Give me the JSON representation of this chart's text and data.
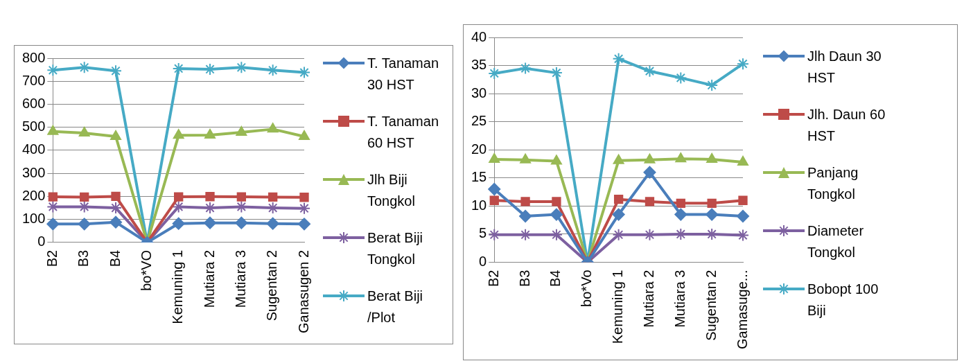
{
  "chart_data": [
    {
      "type": "line",
      "categories": [
        "B2",
        "B3",
        "B4",
        "bo*VO",
        "Kemuning 1",
        "Mutiara 2",
        "Mutiara 3",
        "Sugentan 2",
        "Ganasugen 2"
      ],
      "series": [
        {
          "name": "T. Tanaman 30 HST",
          "color": "#4a7ebb",
          "marker": "diamond",
          "values": [
            80,
            80,
            88,
            0,
            82,
            85,
            85,
            82,
            80
          ]
        },
        {
          "name": "T. Tanaman 60 HST",
          "color": "#be4b48",
          "marker": "square",
          "values": [
            198,
            197,
            200,
            0,
            198,
            199,
            198,
            197,
            196
          ]
        },
        {
          "name": "Jlh Biji Tongkol",
          "color": "#98b954",
          "marker": "triangle",
          "values": [
            482,
            475,
            460,
            0,
            465,
            466,
            478,
            492,
            460
          ]
        },
        {
          "name": "Berat Biji Tongkol",
          "color": "#7d60a0",
          "marker": "cross",
          "values": [
            155,
            155,
            150,
            0,
            155,
            150,
            155,
            150,
            148
          ]
        },
        {
          "name": "Berat Biji /Plot",
          "color": "#46aac5",
          "marker": "cross",
          "values": [
            748,
            760,
            745,
            0,
            755,
            752,
            760,
            748,
            738
          ]
        }
      ],
      "ylim": [
        0,
        800
      ],
      "yticks": [
        0,
        100,
        200,
        300,
        400,
        500,
        600,
        700,
        800
      ],
      "grid": "y",
      "legend": "right"
    },
    {
      "type": "line",
      "categories": [
        "B2",
        "B3",
        "B4",
        "bo*Vo",
        "Kemuning 1",
        "Mutiara 2",
        "Mutiara 3",
        "Sugentan 2",
        "Gamasuge..."
      ],
      "series": [
        {
          "name": "Jlh Daun 30 HST",
          "color": "#4a7ebb",
          "marker": "diamond",
          "values": [
            13,
            8.2,
            8.5,
            0,
            8.5,
            16,
            8.5,
            8.5,
            8.2
          ]
        },
        {
          "name": "Jlh. Daun 60 HST",
          "color": "#be4b48",
          "marker": "square",
          "values": [
            11,
            10.8,
            10.8,
            0,
            11.2,
            10.8,
            10.5,
            10.5,
            11
          ]
        },
        {
          "name": "Panjang Tongkol",
          "color": "#98b954",
          "marker": "triangle",
          "values": [
            18.3,
            18.2,
            18,
            0,
            18.1,
            18.2,
            18.4,
            18.3,
            17.8
          ]
        },
        {
          "name": "Diameter Tongkol",
          "color": "#7d60a0",
          "marker": "cross",
          "values": [
            4.9,
            4.9,
            4.9,
            0,
            4.9,
            4.9,
            5,
            5,
            4.8
          ]
        },
        {
          "name": "Bobopt 100 Biji",
          "color": "#46aac5",
          "marker": "cross",
          "values": [
            33.6,
            34.5,
            33.7,
            0,
            36.2,
            34,
            32.8,
            31.5,
            35.3
          ]
        }
      ],
      "ylim": [
        0,
        40
      ],
      "yticks": [
        0,
        5,
        10,
        15,
        20,
        25,
        30,
        35,
        40
      ],
      "grid": "y",
      "legend": "right"
    }
  ]
}
